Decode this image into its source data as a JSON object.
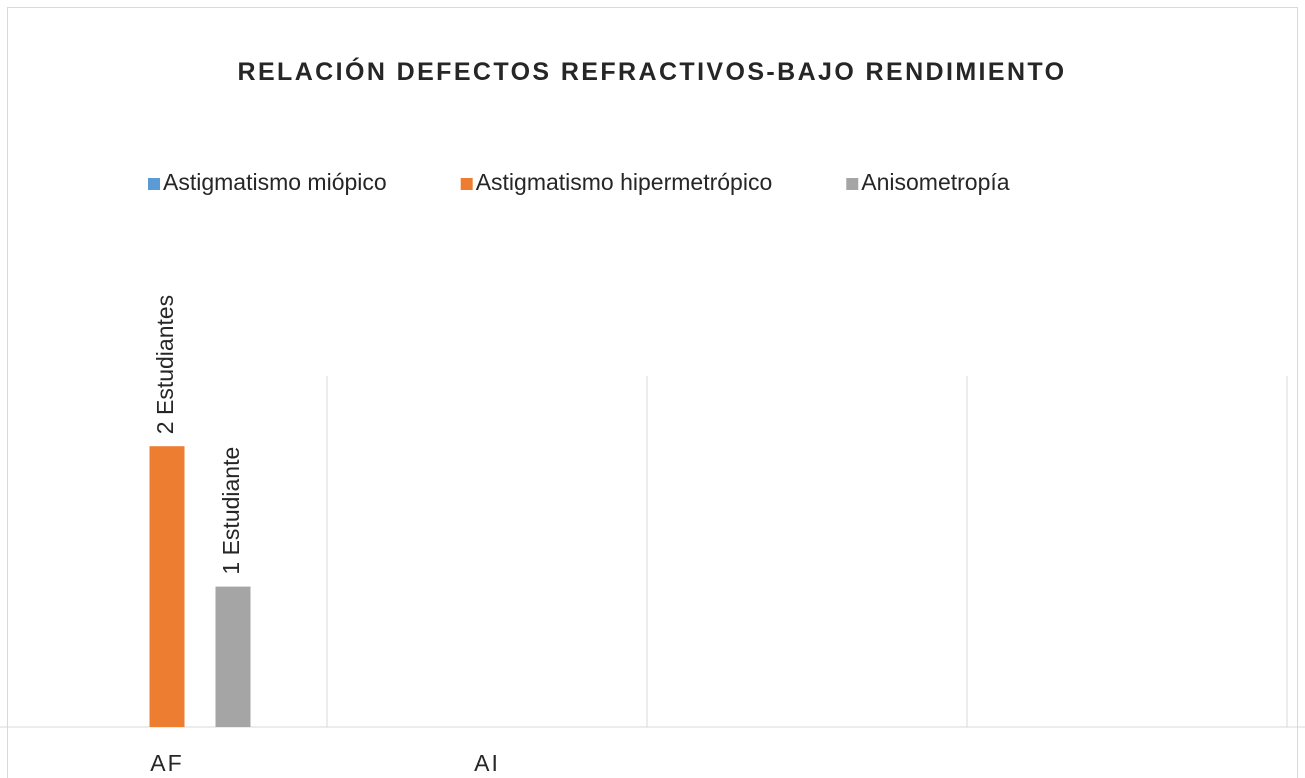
{
  "chart_data": {
    "type": "bar",
    "title": "RELACIÓN DEFECTOS REFRACTIVOS-BAJO RENDIMIENTO",
    "categories": [
      "AF",
      "AI",
      null,
      null
    ],
    "series": [
      {
        "name": "Astigmatismo miópico",
        "color": "#5b9bd5",
        "values": [
          null,
          null,
          null,
          null
        ]
      },
      {
        "name": "Astigmatismo hipermetrópico",
        "color": "#ed7d31",
        "values": [
          2,
          null,
          null,
          null
        ],
        "value_labels": [
          "2 Estudiantes",
          null,
          null,
          null
        ]
      },
      {
        "name": "Anisometropía",
        "color": "#a5a5a5",
        "values": [
          1,
          null,
          null,
          null
        ],
        "value_labels": [
          "1 Estudiante",
          null,
          null,
          null
        ]
      }
    ],
    "ylim": [
      0,
      2.5
    ],
    "legend": "top"
  }
}
